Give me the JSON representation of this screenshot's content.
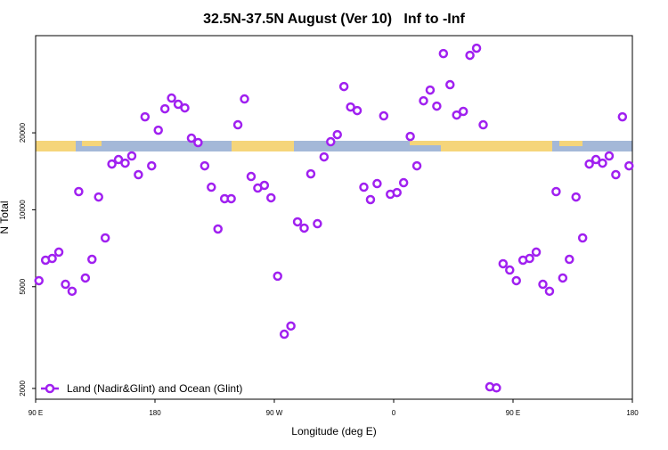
{
  "chart_data": {
    "type": "scatter",
    "title": "32.5N-37.5N August (Ver 10)   Inf to -Inf",
    "xlabel": "Longitude (deg E)",
    "ylabel": "N Total",
    "x": [
      92.5,
      97.5,
      102.5,
      107.5,
      112.5,
      117.5,
      122.5,
      127.5,
      132.5,
      137.5,
      142.5,
      147.5,
      152.5,
      157.5,
      162.5,
      167.5,
      172.5,
      177.5,
      182.5,
      187.5,
      192.5,
      197.5,
      202.5,
      207.5,
      212.5,
      217.5,
      222.5,
      227.5,
      232.5,
      237.5,
      242.5,
      247.5,
      252.5,
      257.5,
      262.5,
      267.5,
      272.5,
      277.5,
      282.5,
      287.5,
      292.5,
      297.5,
      302.5,
      307.5,
      312.5,
      317.5,
      322.5,
      327.5,
      332.5,
      337.5,
      342.5,
      347.5,
      352.5,
      357.5,
      362.5,
      367.5,
      372.5,
      377.5,
      382.5,
      387.5,
      392.5,
      397.5,
      402.5,
      407.5,
      412.5,
      417.5,
      422.5,
      427.5,
      432.5,
      437.5,
      442.5,
      447.5,
      452.5,
      457.5,
      462.5,
      467.5,
      472.5,
      477.5,
      482.5,
      487.5,
      492.5,
      497.5,
      502.5,
      507.5,
      512.5,
      517.5,
      522.5,
      527.5,
      532.5,
      537.5
    ],
    "series": [
      {
        "name": "Land (Nadir&Glint) and Ocean (Glint)",
        "color": "#a020f0",
        "values": [
          5280,
          6350,
          6450,
          6830,
          5110,
          4800,
          11780,
          5410,
          6400,
          11220,
          7760,
          15100,
          15720,
          15220,
          16240,
          13720,
          23100,
          14860,
          20480,
          24840,
          27360,
          25860,
          25040,
          19060,
          18320,
          14860,
          12260,
          8410,
          11050,
          11050,
          21500,
          27140,
          13500,
          12160,
          12460,
          11140,
          5500,
          3260,
          3510,
          8970,
          8480,
          13820,
          8820,
          16100,
          18460,
          19680,
          30360,
          25240,
          24440,
          12260,
          10960,
          12660,
          23300,
          11500,
          11680,
          12760,
          19360,
          14860,
          26700,
          29400,
          25440,
          40840,
          30860,
          23480,
          24260,
          40200,
          42860,
          21500,
          2030,
          2010,
          6150,
          5810,
          5280,
          6350,
          6450,
          6830,
          5110,
          4800,
          11780,
          5410,
          6400,
          11220,
          7760,
          15100,
          15720,
          15220,
          16240,
          13720,
          23100,
          14860
        ]
      }
    ],
    "xlim": [
      90,
      540
    ],
    "ylim": [
      1815,
      48000
    ],
    "log_y": true,
    "xticks": [
      {
        "value": 90,
        "label": "90 E"
      },
      180,
      {
        "value": 270,
        "label": "90 W"
      },
      {
        "value": 360,
        "label": "0"
      },
      {
        "value": 450,
        "label": "90 E"
      },
      {
        "value": 540,
        "label": "180"
      }
    ],
    "yticks": [
      2000,
      5000,
      10000,
      20000
    ],
    "legend": "bottomleft"
  }
}
